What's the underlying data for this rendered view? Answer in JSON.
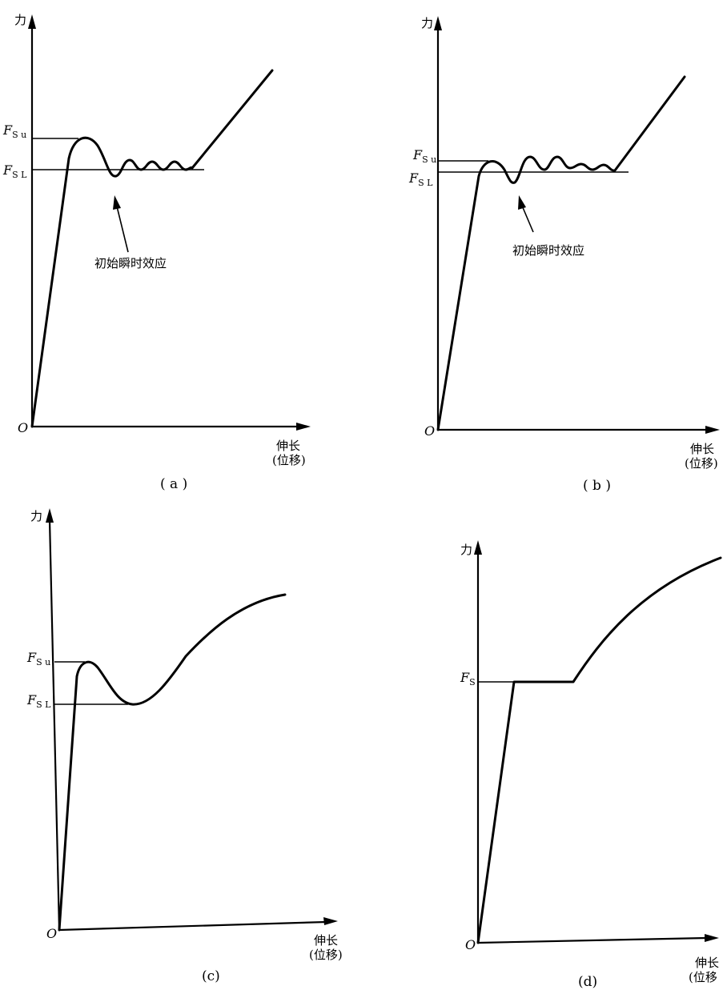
{
  "panels": [
    {
      "id": "a",
      "y_axis_label": "力",
      "x_axis_label_line1": "伸长",
      "x_axis_label_line2": "(位移)",
      "origin_label": "O",
      "upper_label": "F",
      "upper_label_sub": "S u",
      "lower_label": "F",
      "lower_label_sub": "S L",
      "annotation": "初始瞬时效应",
      "caption": "( a )"
    },
    {
      "id": "b",
      "y_axis_label": "力",
      "x_axis_label_line1": "伸长",
      "x_axis_label_line2": "(位移)",
      "origin_label": "O",
      "upper_label": "F",
      "upper_label_sub": "S u",
      "lower_label": "F",
      "lower_label_sub": "S L",
      "annotation": "初始瞬时效应",
      "caption": "( b )"
    },
    {
      "id": "c",
      "y_axis_label": "力",
      "x_axis_label_line1": "伸长",
      "x_axis_label_line2": "(位移)",
      "origin_label": "O",
      "upper_label": "F",
      "upper_label_sub": "S u",
      "lower_label": "F",
      "lower_label_sub": "S L",
      "caption": "(c)"
    },
    {
      "id": "d",
      "y_axis_label": "力",
      "x_axis_label_line1": "伸长",
      "x_axis_label_line2": "(位移",
      "origin_label": "O",
      "level_label": "F",
      "level_label_sub": "S",
      "caption": "(d)"
    }
  ]
}
